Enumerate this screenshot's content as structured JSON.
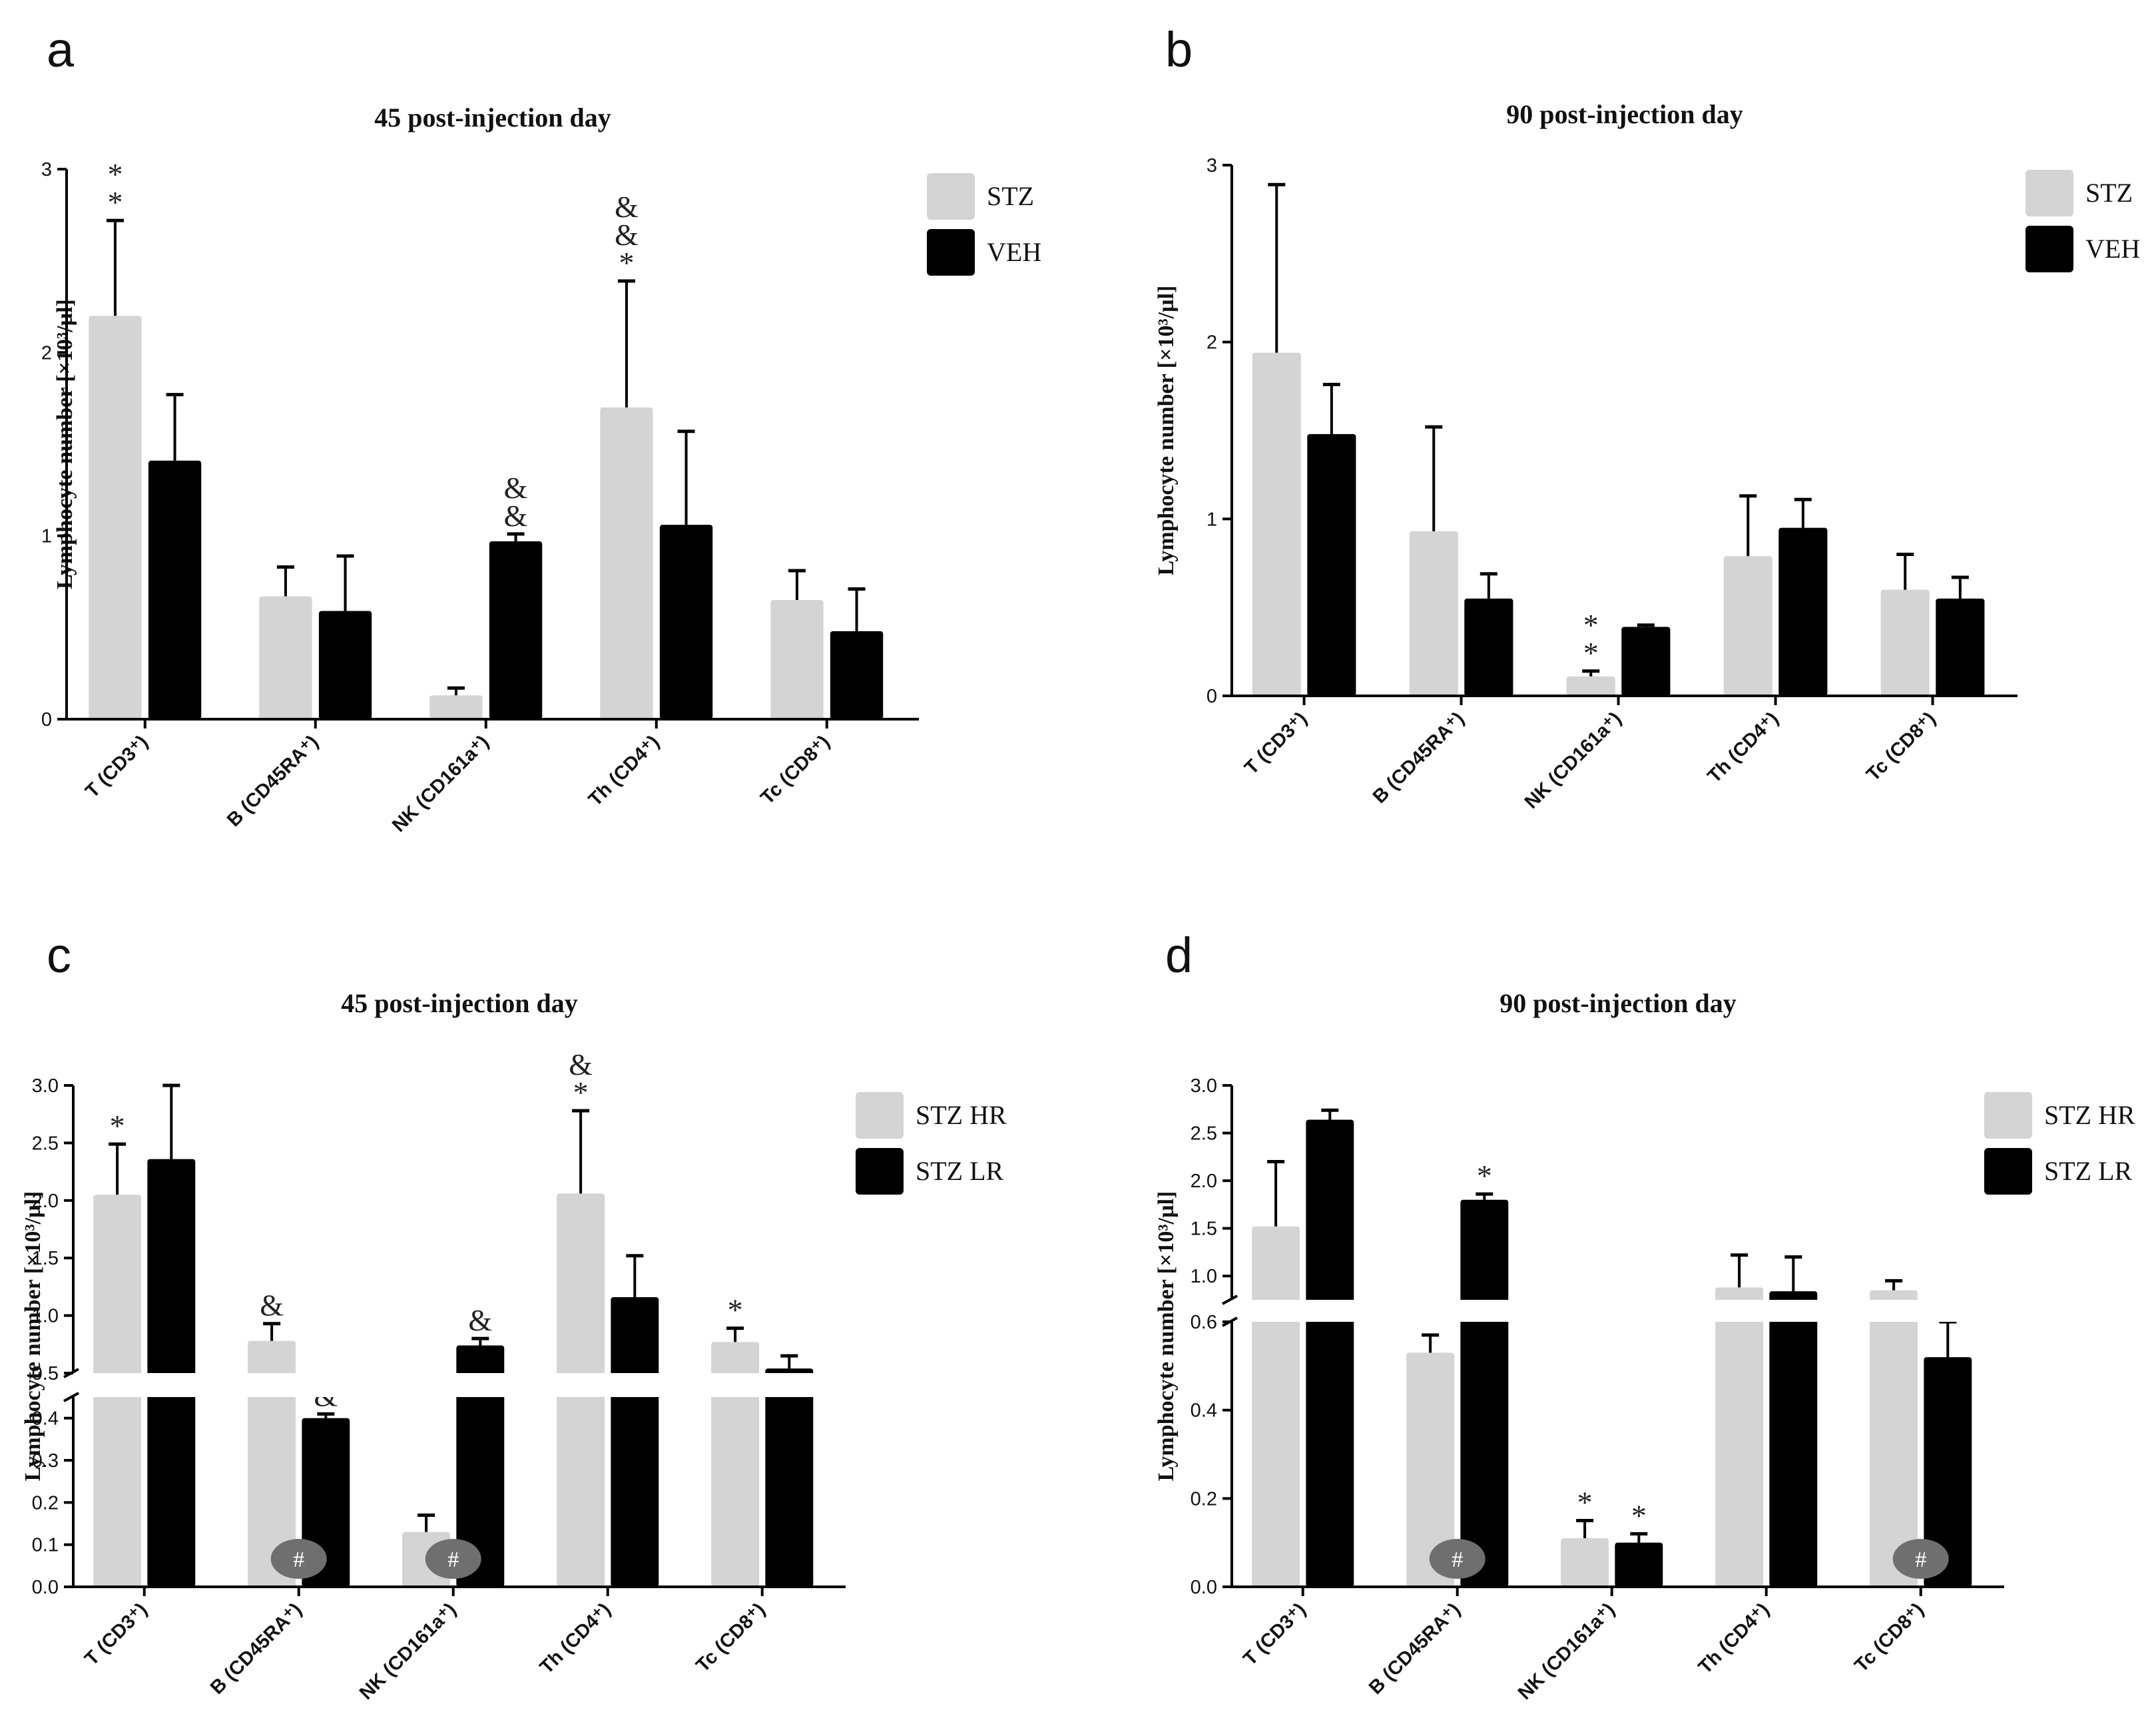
{
  "colors": {
    "light": "#d4d4d4",
    "dark": "#000000",
    "hash_badge": "#6f6f6f"
  },
  "chart_data": [
    {
      "type": "bar",
      "panel": "a",
      "title": "45 post-injection day",
      "ylabel": "Lymphocyte number [×10³/µl]",
      "ylim": [
        0,
        3
      ],
      "yticks": [
        "0",
        "1",
        "2",
        "3"
      ],
      "categories": [
        "T (CD3⁺)",
        "B (CD45RA⁺)",
        "NK (CD161a⁺)",
        "Th (CD4⁺)",
        "Tc (CD8⁺)"
      ],
      "legend": [
        "STZ",
        "VEH"
      ],
      "series": [
        {
          "name": "STZ",
          "values": [
            2.2,
            0.67,
            0.13,
            1.7,
            0.65
          ],
          "errors": [
            0.52,
            0.16,
            0.04,
            0.69,
            0.16
          ],
          "annotations": [
            "*\n*",
            "",
            "",
            "&\n&\n*",
            ""
          ]
        },
        {
          "name": "VEH",
          "values": [
            1.41,
            0.59,
            0.97,
            1.06,
            0.48
          ],
          "errors": [
            0.36,
            0.3,
            0.04,
            0.51,
            0.23
          ],
          "annotations": [
            "",
            "",
            "&\n&",
            "",
            ""
          ]
        }
      ]
    },
    {
      "type": "bar",
      "panel": "b",
      "title": "90 post-injection day",
      "ylabel": "Lymphocyte number [×10³/µl]",
      "ylim": [
        0,
        3
      ],
      "yticks": [
        "0",
        "1",
        "2",
        "3"
      ],
      "categories": [
        "T (CD3⁺)",
        "B (CD45RA⁺)",
        "NK (CD161a⁺)",
        "Th (CD4⁺)",
        "Tc (CD8⁺)"
      ],
      "legend": [
        "STZ",
        "VEH"
      ],
      "series": [
        {
          "name": "STZ",
          "values": [
            1.94,
            0.93,
            0.11,
            0.79,
            0.6
          ],
          "errors": [
            0.95,
            0.59,
            0.03,
            0.34,
            0.2
          ],
          "annotations": [
            "",
            "",
            "*\n*",
            "",
            ""
          ]
        },
        {
          "name": "VEH",
          "values": [
            1.48,
            0.55,
            0.39,
            0.95,
            0.55
          ],
          "errors": [
            0.28,
            0.14,
            0.01,
            0.16,
            0.12
          ],
          "annotations": [
            "",
            "",
            "",
            "",
            ""
          ]
        }
      ]
    },
    {
      "type": "bar",
      "panel": "c",
      "title": "45 post-injection day",
      "ylabel": "Lymphocyte number [×10³/µl]",
      "broken_axis": {
        "lower": [
          0,
          0.45
        ],
        "upper": [
          0.5,
          3.0
        ]
      },
      "yticks_lower": [
        "0.0",
        "0.1",
        "0.2",
        "0.3",
        "0.4"
      ],
      "yticks_upper": [
        "0.5",
        "1.0",
        "1.5",
        "2.0",
        "2.5",
        "3.0"
      ],
      "categories": [
        "T (CD3⁺)",
        "B (CD45RA⁺)",
        "NK (CD161a⁺)",
        "Th (CD4⁺)",
        "Tc (CD8⁺)"
      ],
      "legend": [
        "STZ HR",
        "STZ LR"
      ],
      "series": [
        {
          "name": "STZ HR",
          "values": [
            2.05,
            0.78,
            0.13,
            2.06,
            0.77
          ],
          "errors": [
            0.44,
            0.15,
            0.04,
            0.72,
            0.12
          ],
          "annotations": [
            "*",
            "&",
            "",
            "&\n*",
            "*"
          ]
        },
        {
          "name": "STZ LR",
          "values": [
            2.36,
            0.4,
            0.74,
            1.16,
            0.54
          ],
          "errors": [
            0.64,
            0.01,
            0.06,
            0.36,
            0.11
          ],
          "annotations": [
            "",
            "&",
            "&",
            "",
            ""
          ]
        }
      ],
      "hash_marks": [
        "",
        "#",
        "#",
        "",
        ""
      ]
    },
    {
      "type": "bar",
      "panel": "d",
      "title": "90 post-injection day",
      "ylabel": "Lymphocyte number [×10³/µl]",
      "broken_axis": {
        "lower": [
          0,
          0.6
        ],
        "upper": [
          0.75,
          3.0
        ]
      },
      "yticks_lower": [
        "0.0",
        "0.2",
        "0.4",
        "0.6"
      ],
      "yticks_upper": [
        "1.0",
        "1.5",
        "2.0",
        "2.5",
        "3.0"
      ],
      "categories": [
        "T (CD3⁺)",
        "B (CD45RA⁺)",
        "NK (CD161a⁺)",
        "Th (CD4⁺)",
        "Tc (CD8⁺)"
      ],
      "legend": [
        "STZ HR",
        "STZ LR"
      ],
      "series": [
        {
          "name": "STZ HR",
          "values": [
            1.52,
            0.53,
            0.11,
            0.88,
            0.85
          ],
          "errors": [
            0.68,
            0.04,
            0.04,
            0.34,
            0.1
          ],
          "annotations": [
            "",
            "",
            "*",
            "",
            ""
          ]
        },
        {
          "name": "STZ LR",
          "values": [
            2.64,
            1.8,
            0.1,
            0.84,
            0.52
          ],
          "errors": [
            0.1,
            0.06,
            0.02,
            0.36,
            0.08
          ],
          "annotations": [
            "",
            "*",
            "*",
            "",
            ""
          ]
        }
      ],
      "hash_marks": [
        "",
        "#",
        "",
        "",
        "#"
      ]
    }
  ]
}
